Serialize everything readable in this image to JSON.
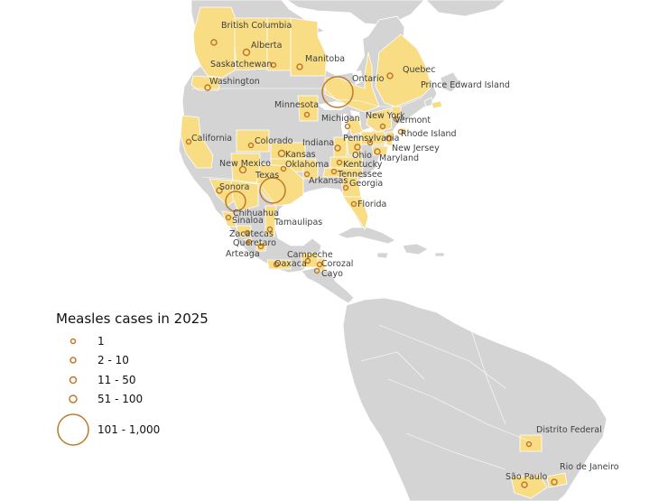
{
  "map": {
    "colors": {
      "water": "#ffffff",
      "land": "#d4d4d4",
      "affected": "#f8dd85",
      "borders": "#ffffff",
      "marker": "#c0792b"
    },
    "region_labels": [
      "British Columbia",
      "Alberta",
      "Saskatchewan",
      "Manitoba",
      "Ontario",
      "Quebec",
      "Prince Edward Island",
      "Washington",
      "Minnesota",
      "Michigan",
      "New York",
      "Vermont",
      "Rhode Island",
      "New Jersey",
      "Maryland",
      "Pennsylvania",
      "Ohio",
      "Indiana",
      "Kentucky",
      "Tennessee",
      "Georgia",
      "Florida",
      "California",
      "Colorado",
      "Kansas",
      "Oklahoma",
      "New Mexico",
      "Texas",
      "Arkansas",
      "Sonora",
      "Chihuahua",
      "Tamaulipas",
      "Sinaloa",
      "Zacatecas",
      "Queretaro",
      "Arteaga",
      "Oaxaca",
      "Campeche",
      "Corozal",
      "Cayo",
      "Distrito Federal",
      "São Paulo",
      "Rio de Janeiro"
    ]
  },
  "legend": {
    "title": "Measles cases in 2025",
    "classes": [
      {
        "label": "1"
      },
      {
        "label": "2 - 10"
      },
      {
        "label": "11 - 50"
      },
      {
        "label": "51 - 100"
      },
      {
        "label": "101 - 1,000"
      }
    ]
  }
}
